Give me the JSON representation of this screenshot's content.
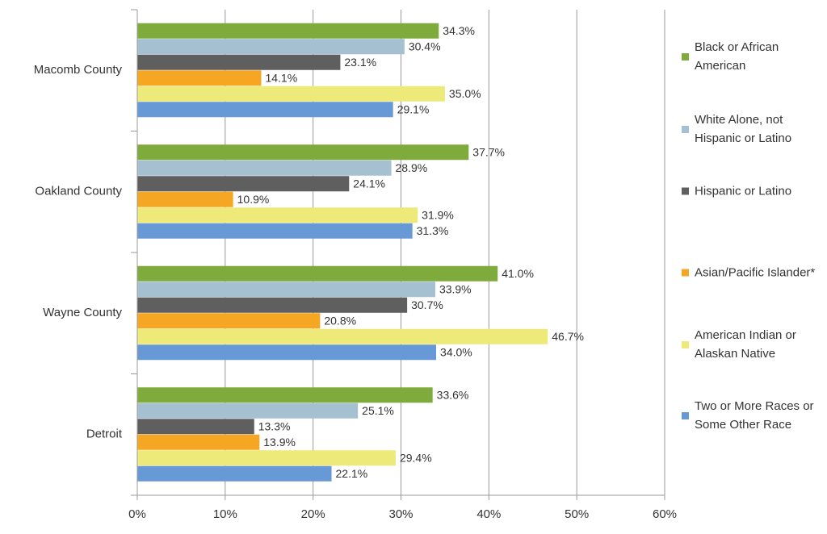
{
  "chart_data": {
    "type": "bar",
    "orientation": "horizontal",
    "categories": [
      "Macomb County",
      "Oakland County",
      "Wayne County",
      "Detroit"
    ],
    "series": [
      {
        "name": "Black or African American",
        "color": "#7eab3b",
        "values": [
          34.3,
          37.7,
          41.0,
          33.6
        ],
        "value_labels": [
          "34.3%",
          "37.7%",
          "41.0%",
          "33.6%"
        ]
      },
      {
        "name": "White Alone, not Hispanic or Latino",
        "color": "#a5c0d0",
        "values": [
          30.4,
          28.9,
          33.9,
          25.1
        ],
        "value_labels": [
          "30.4%",
          "28.9%",
          "33.9%",
          "25.1%"
        ]
      },
      {
        "name": "Hispanic or Latino",
        "color": "#5f5f5f",
        "values": [
          23.1,
          24.1,
          30.7,
          13.3
        ],
        "value_labels": [
          "23.1%",
          "24.1%",
          "30.7%",
          "13.3%"
        ]
      },
      {
        "name": "Asian/Pacific Islander*",
        "color": "#f5a623",
        "values": [
          14.1,
          10.9,
          20.8,
          13.9
        ],
        "value_labels": [
          "14.1%",
          "10.9%",
          "20.8%",
          "13.9%"
        ]
      },
      {
        "name": "American Indian or Alaskan Native",
        "color": "#eeea7a",
        "values": [
          35.0,
          31.9,
          46.7,
          29.4
        ],
        "value_labels": [
          "35.0%",
          "31.9%",
          "46.7%",
          "29.4%"
        ]
      },
      {
        "name": "Two or More Races or Some Other Race",
        "color": "#6699d6",
        "values": [
          29.1,
          31.3,
          34.0,
          22.1
        ],
        "value_labels": [
          "29.1%",
          "31.3%",
          "34.0%",
          "22.1%"
        ]
      }
    ],
    "xlim": [
      0,
      60
    ],
    "xticks": [
      {
        "value": 0,
        "label": "0%"
      },
      {
        "value": 10,
        "label": "10%"
      },
      {
        "value": 20,
        "label": "20%"
      },
      {
        "value": 30,
        "label": "30%"
      },
      {
        "value": 40,
        "label": "40%"
      },
      {
        "value": 50,
        "label": "50%"
      },
      {
        "value": 60,
        "label": "60%"
      }
    ],
    "grid": true,
    "legend": "right"
  }
}
